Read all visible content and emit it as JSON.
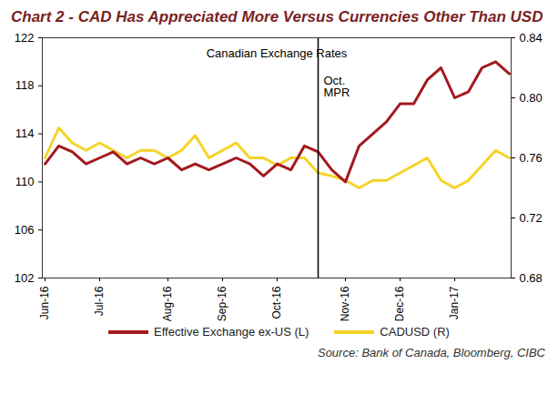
{
  "chart_data": {
    "type": "line",
    "title": "Chart 2 - CAD Has Appreciated More Versus Currencies Other Than USD",
    "subtitle": "Canadian Exchange Rates",
    "source": "Source: Bank of Canada, Bloomberg, CIBC",
    "categories": [
      "Jun-16",
      null,
      null,
      null,
      "Jul-16",
      null,
      null,
      null,
      null,
      "Aug-16",
      null,
      null,
      null,
      "Sep-16",
      null,
      null,
      null,
      "Oct-16",
      null,
      null,
      null,
      null,
      "Nov-16",
      null,
      null,
      null,
      "Dec-16",
      null,
      null,
      null,
      "Jan-17",
      null,
      null,
      null,
      null
    ],
    "series": [
      {
        "name": "Effective Exchange ex-US (L)",
        "color": "#a3191f",
        "axis": "y",
        "values": [
          111.5,
          113.0,
          112.5,
          111.5,
          112.0,
          112.5,
          111.5,
          112.0,
          111.5,
          112.0,
          111.0,
          111.5,
          111.0,
          111.5,
          112.0,
          111.5,
          110.5,
          111.5,
          111.0,
          113.0,
          112.5,
          111.0,
          110.0,
          113.0,
          114.0,
          115.0,
          116.5,
          116.5,
          118.5,
          119.5,
          117.0,
          117.5,
          119.5,
          120.0,
          119.0
        ]
      },
      {
        "name": "CADUSD (R)",
        "color": "#f5d328",
        "axis": "y2",
        "values": [
          0.76,
          0.78,
          0.77,
          0.765,
          0.77,
          0.765,
          0.76,
          0.765,
          0.765,
          0.76,
          0.765,
          0.775,
          0.76,
          0.765,
          0.77,
          0.76,
          0.76,
          0.755,
          0.76,
          0.76,
          0.75,
          0.748,
          0.745,
          0.74,
          0.745,
          0.745,
          0.75,
          0.755,
          0.76,
          0.745,
          0.74,
          0.745,
          0.755,
          0.765,
          0.76
        ]
      }
    ],
    "ylim": [
      102,
      122
    ],
    "yticks": [
      102,
      106,
      110,
      114,
      118,
      122
    ],
    "y2lim": [
      0.68,
      0.84
    ],
    "y2ticks": [
      0.68,
      0.72,
      0.76,
      {
        "value": 0.8,
        "label": "0.80"
      },
      0.84
    ],
    "annotations": [
      {
        "text": "Oct. MPR",
        "x_index": 20
      }
    ],
    "grid": false,
    "legend": "bottom"
  }
}
